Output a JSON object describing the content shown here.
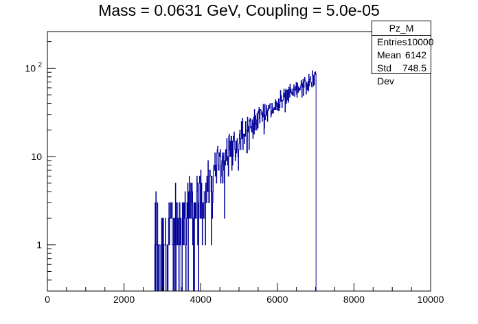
{
  "chart_data": {
    "type": "histogram",
    "title": "Mass = 0.0631 GeV, Coupling = 5.0e-05",
    "xlabel": "",
    "ylabel": "",
    "xlim": [
      0,
      10000
    ],
    "ylim": [
      0.3,
      260
    ],
    "yscale": "log",
    "grid": false,
    "line_color": "#000099",
    "x_ticks": [
      "0",
      "2000",
      "4000",
      "6000",
      "8000",
      "10000"
    ],
    "y_ticks": [
      {
        "value": 1,
        "label": "1"
      },
      {
        "value": 10,
        "label": "10"
      },
      {
        "value": 100,
        "label": "10",
        "exponent": "2"
      }
    ],
    "series": [
      {
        "x": [
          2800,
          3000,
          3200,
          3400,
          3600,
          3800,
          4000,
          4200,
          4400,
          4600,
          4800,
          5000,
          5200,
          5400,
          5600,
          5800,
          6000,
          6200,
          6400,
          6600,
          6800,
          7000,
          7080
        ],
        "values": [
          1,
          1,
          1.3,
          1.5,
          2,
          2.5,
          3.5,
          5,
          7,
          10,
          13,
          16,
          20,
          24,
          28,
          33,
          38,
          45,
          52,
          60,
          68,
          80,
          0
        ]
      }
    ]
  },
  "stats": {
    "name": "Pz_M",
    "rows": [
      {
        "label": "Entries",
        "value": "10000"
      },
      {
        "label": "Mean",
        "value": "6142"
      },
      {
        "label": "Std Dev",
        "value": "748.5"
      }
    ]
  }
}
